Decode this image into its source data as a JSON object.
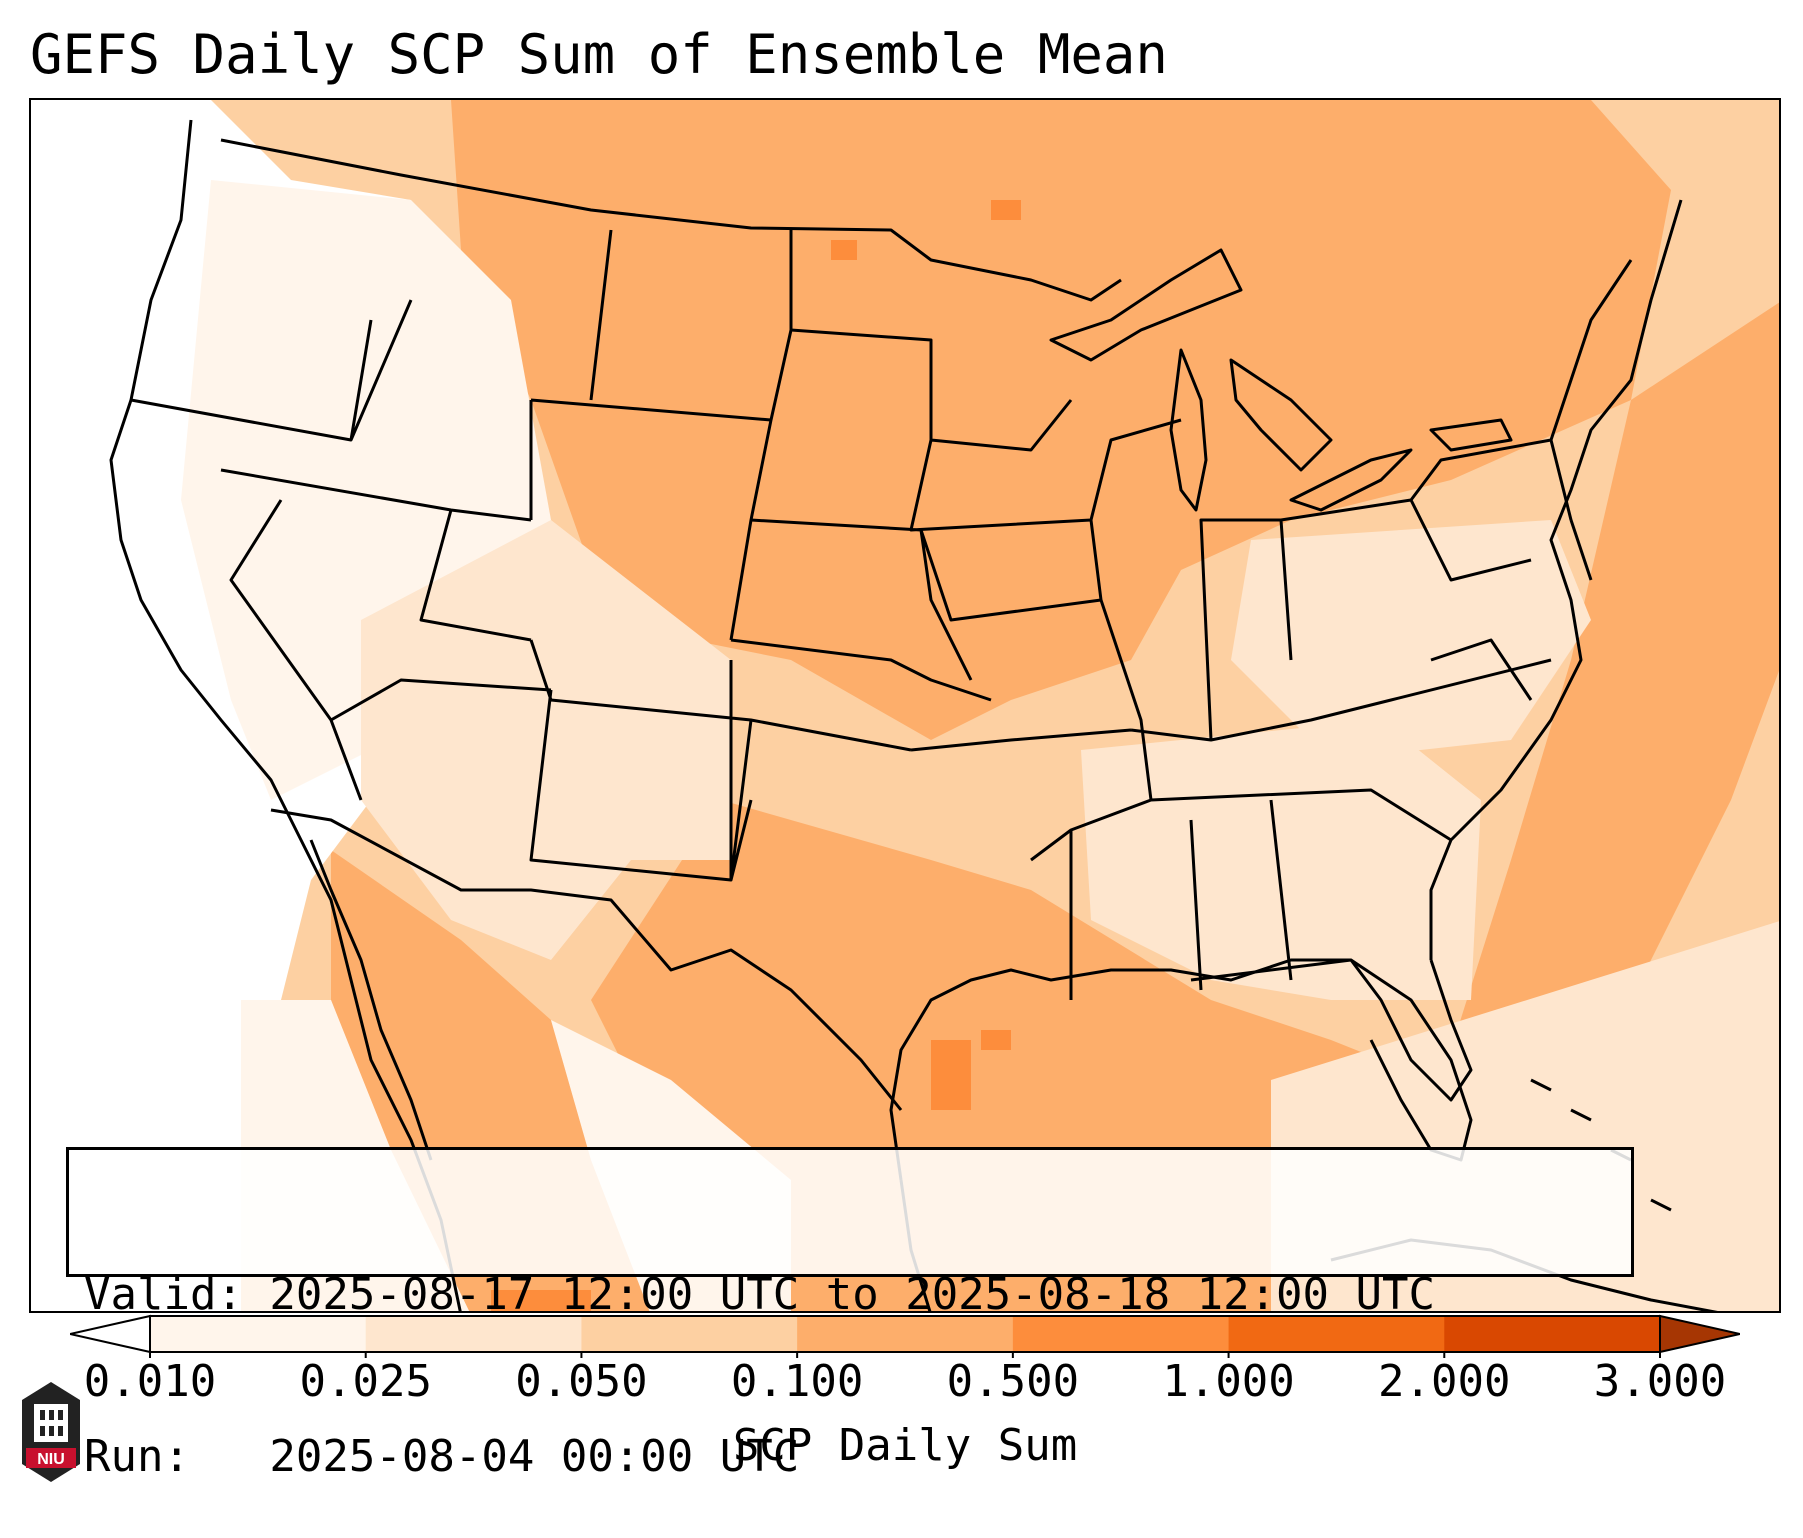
{
  "title": "GEFS Daily SCP Sum of Ensemble Mean",
  "info": {
    "valid": "Valid: 2025-08-17 12:00 UTC to 2025-08-18 12:00 UTC",
    "run": "Run:   2025-08-04 00:00 UTC"
  },
  "colorbar": {
    "label": "SCP Daily Sum",
    "ticks": [
      "0.010",
      "0.025",
      "0.050",
      "0.100",
      "0.500",
      "1.000",
      "2.000",
      "3.000"
    ],
    "colors": [
      "#fff5eb",
      "#fee6ce",
      "#fdd0a2",
      "#fdae6b",
      "#fd8d3c",
      "#f16913",
      "#d94801"
    ],
    "under_color": "#ffffff",
    "over_color": "#a63603",
    "extend": "both"
  },
  "map": {
    "fill_colors": {
      "none": "#ffffff",
      "very_low": "#fff5eb",
      "low": "#fee6ce",
      "mid": "#fdd0a2",
      "high": "#fdae6b",
      "peak": "#fd8d3c"
    },
    "border_color": "#000000"
  },
  "logo": {
    "text": "NIU",
    "color": "#c8102e"
  }
}
